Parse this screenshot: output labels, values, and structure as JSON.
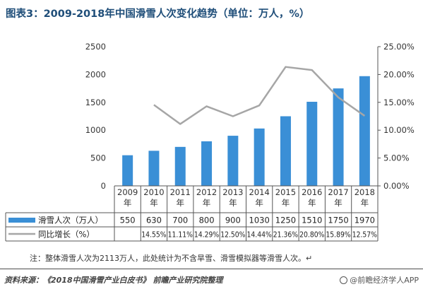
{
  "header": {
    "title": "图表3：2009-2018年中国滑雪人次变化趋势（单位：万人，%）"
  },
  "chart_data": {
    "type": "bar",
    "categories": [
      "2009\n年",
      "2010\n年",
      "2011\n年",
      "2012\n年",
      "2013\n年",
      "2014\n年",
      "2015\n年",
      "2016\n年",
      "2017\n年",
      "2018\n年"
    ],
    "series": [
      {
        "name": "滑雪人次（万人）",
        "type": "bar",
        "axis": "left",
        "values": [
          550,
          630,
          700,
          800,
          900,
          1030,
          1250,
          1510,
          1750,
          1970
        ],
        "labels": [
          "550",
          "630",
          "700",
          "800",
          "900",
          "1030",
          "1250",
          "1510",
          "1750",
          "1970"
        ]
      },
      {
        "name": "同比增长（%）",
        "type": "line",
        "axis": "right",
        "values": [
          null,
          14.55,
          11.11,
          14.29,
          12.5,
          14.44,
          21.36,
          20.8,
          15.89,
          12.57
        ],
        "labels": [
          "",
          "14.55%",
          "11.11%",
          "14.29%",
          "12.50%",
          "14.44%",
          "21.36%",
          "20.80%",
          "15.89%",
          "12.57%"
        ]
      }
    ],
    "y_left": {
      "ylim": [
        0,
        2500
      ],
      "ticks": [
        "0",
        "500",
        "1000",
        "1500",
        "2000",
        "2500"
      ]
    },
    "y_right": {
      "ylim": [
        0,
        25
      ],
      "ticks": [
        "0.00%",
        "5.00%",
        "10.00%",
        "15.00%",
        "20.00%",
        "25.00%"
      ]
    },
    "data_table": true,
    "legend_position": "data-table",
    "colors": {
      "bar": "#3a8fd6",
      "line": "#a6a6a6",
      "title": "#1f4e79"
    }
  },
  "footer": {
    "note": "注：整体滑雪人次为2113万人，此处统计为不含旱雪、滑雪模拟器等滑雪人次。↵",
    "source": "资料来源：《2018中国滑雪产业白皮书》 前瞻产业研究院整理",
    "brand": "@前瞻经济学人APP"
  }
}
